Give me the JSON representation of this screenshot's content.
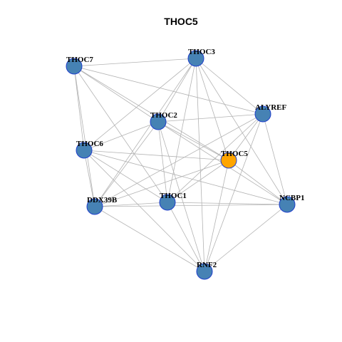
{
  "title": "THOC5",
  "nodes": [
    {
      "label": "THOC7",
      "color": "#4682b4"
    },
    {
      "label": "THOC3",
      "color": "#4682b4"
    },
    {
      "label": "ALYREF",
      "color": "#4682b4"
    },
    {
      "label": "THOC2",
      "color": "#4682b4"
    },
    {
      "label": "THOC6",
      "color": "#4682b4"
    },
    {
      "label": "THOC5",
      "color": "#ffa500"
    },
    {
      "label": "DDX39B",
      "color": "#4682b4"
    },
    {
      "label": "THOC1",
      "color": "#4682b4"
    },
    {
      "label": "NCBP1",
      "color": "#4682b4"
    },
    {
      "label": "RNF2",
      "color": "#4682b4"
    }
  ],
  "edges": [
    [
      0,
      1
    ],
    [
      0,
      2
    ],
    [
      0,
      3
    ],
    [
      0,
      4
    ],
    [
      0,
      6
    ],
    [
      0,
      7
    ],
    [
      0,
      5
    ],
    [
      1,
      3
    ],
    [
      1,
      4
    ],
    [
      1,
      6
    ],
    [
      1,
      7
    ],
    [
      1,
      5
    ],
    [
      1,
      8
    ],
    [
      1,
      2
    ],
    [
      1,
      9
    ],
    [
      2,
      3
    ],
    [
      2,
      6
    ],
    [
      2,
      7
    ],
    [
      2,
      5
    ],
    [
      2,
      8
    ],
    [
      2,
      9
    ],
    [
      3,
      4
    ],
    [
      3,
      5
    ],
    [
      3,
      6
    ],
    [
      3,
      7
    ],
    [
      3,
      8
    ],
    [
      3,
      9
    ],
    [
      4,
      5
    ],
    [
      4,
      6
    ],
    [
      4,
      7
    ],
    [
      4,
      8
    ],
    [
      4,
      9
    ],
    [
      5,
      6
    ],
    [
      5,
      7
    ],
    [
      5,
      8
    ],
    [
      5,
      9
    ],
    [
      6,
      7
    ],
    [
      6,
      8
    ],
    [
      6,
      9
    ],
    [
      7,
      8
    ],
    [
      7,
      9
    ],
    [
      8,
      9
    ]
  ]
}
